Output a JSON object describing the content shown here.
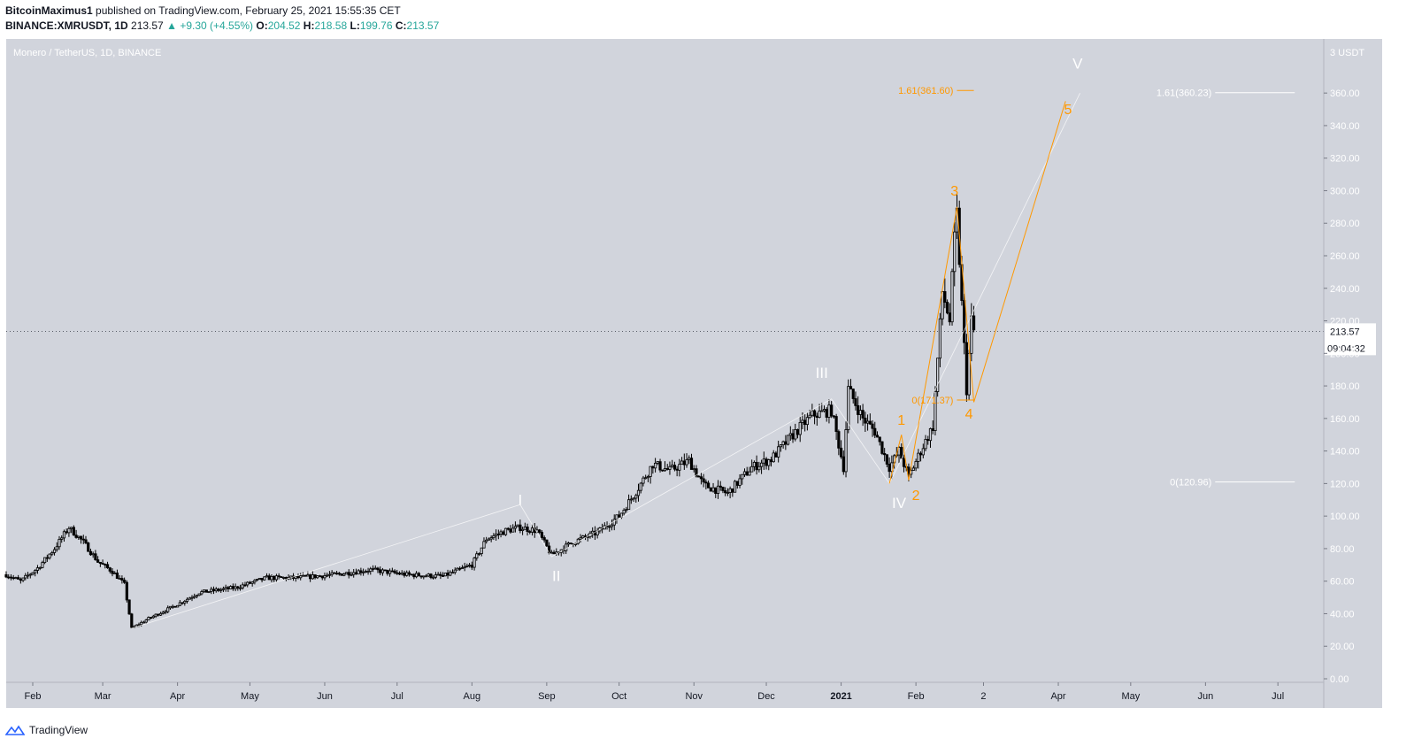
{
  "header": {
    "line1_author": "BitcoinMaximus1",
    "line1_rest": "published on TradingView.com, February 25, 2021 15:55:35 CET",
    "symbol": "BINANCE:XMRUSDT, 1D",
    "last": "213.57",
    "change": "+9.30 (+4.55%)",
    "o_label": "O:",
    "o_val": "204.52",
    "h_label": "H:",
    "h_val": "218.58",
    "l_label": "L:",
    "l_val": "199.76",
    "c_label": "C:",
    "c_val": "213.57"
  },
  "footer": {
    "brand": "TradingView"
  },
  "colors": {
    "background": "#d1d4dc",
    "candle": "#000000",
    "orange": "#ff9800",
    "white": "#ffffff",
    "price_label_bg": "#ffffff"
  },
  "chart_data": {
    "type": "candlestick",
    "title": "Monero / TetherUS, 1D, BINANCE",
    "y_unit": "USDT",
    "ylim": [
      0,
      390
    ],
    "yticks": [
      0,
      20,
      40,
      60,
      80,
      100,
      120,
      140,
      160,
      180,
      200,
      220,
      240,
      260,
      280,
      300,
      320,
      340,
      360
    ],
    "ytick_labels": [
      "0.00",
      "20.00",
      "40.00",
      "60.00",
      "80.00",
      "100.00",
      "120.00",
      "140.00",
      "160.00",
      "180.00",
      "200.00",
      "220.00",
      "240.00",
      "260.00",
      "280.00",
      "300.00",
      "320.00",
      "340.00",
      "360.00"
    ],
    "unit_label": "3 USDT",
    "xlim": [
      "2020-01-21",
      "2021-07-20"
    ],
    "xticks": [
      {
        "date": "2020-02-01",
        "label": "Feb"
      },
      {
        "date": "2020-03-01",
        "label": "Mar"
      },
      {
        "date": "2020-04-01",
        "label": "Apr"
      },
      {
        "date": "2020-05-01",
        "label": "May"
      },
      {
        "date": "2020-06-01",
        "label": "Jun"
      },
      {
        "date": "2020-07-01",
        "label": "Jul"
      },
      {
        "date": "2020-08-01",
        "label": "Aug"
      },
      {
        "date": "2020-09-01",
        "label": "Sep"
      },
      {
        "date": "2020-10-01",
        "label": "Oct"
      },
      {
        "date": "2020-11-01",
        "label": "Nov"
      },
      {
        "date": "2020-12-01",
        "label": "Dec"
      },
      {
        "date": "2021-01-01",
        "label": "2021"
      },
      {
        "date": "2021-02-01",
        "label": "Feb"
      },
      {
        "date": "2021-03-01",
        "label": "2"
      },
      {
        "date": "2021-04-01",
        "label": "Apr"
      },
      {
        "date": "2021-05-01",
        "label": "May"
      },
      {
        "date": "2021-06-01",
        "label": "Jun"
      },
      {
        "date": "2021-07-01",
        "label": "Jul"
      }
    ],
    "price_path": [
      [
        "2020-01-21",
        64
      ],
      [
        "2020-01-27",
        60
      ],
      [
        "2020-02-03",
        68
      ],
      [
        "2020-02-10",
        80
      ],
      [
        "2020-02-16",
        93
      ],
      [
        "2020-02-22",
        84
      ],
      [
        "2020-02-28",
        72
      ],
      [
        "2020-03-05",
        66
      ],
      [
        "2020-03-10",
        58
      ],
      [
        "2020-03-13",
        31
      ],
      [
        "2020-03-20",
        37
      ],
      [
        "2020-03-31",
        45
      ],
      [
        "2020-04-10",
        53
      ],
      [
        "2020-04-25",
        56
      ],
      [
        "2020-05-08",
        62
      ],
      [
        "2020-05-20",
        62
      ],
      [
        "2020-06-05",
        64
      ],
      [
        "2020-06-20",
        67
      ],
      [
        "2020-07-05",
        64
      ],
      [
        "2020-07-20",
        63
      ],
      [
        "2020-08-01",
        70
      ],
      [
        "2020-08-07",
        86
      ],
      [
        "2020-08-15",
        91
      ],
      [
        "2020-08-21",
        93
      ],
      [
        "2020-08-28",
        91
      ],
      [
        "2020-09-03",
        76
      ],
      [
        "2020-09-12",
        84
      ],
      [
        "2020-09-22",
        90
      ],
      [
        "2020-10-01",
        100
      ],
      [
        "2020-10-08",
        115
      ],
      [
        "2020-10-15",
        132
      ],
      [
        "2020-10-22",
        128
      ],
      [
        "2020-10-30",
        134
      ],
      [
        "2020-11-05",
        119
      ],
      [
        "2020-11-15",
        114
      ],
      [
        "2020-11-25",
        130
      ],
      [
        "2020-12-03",
        135
      ],
      [
        "2020-12-12",
        150
      ],
      [
        "2020-12-20",
        162
      ],
      [
        "2020-12-28",
        165
      ],
      [
        "2021-01-02",
        130
      ],
      [
        "2021-01-04",
        178
      ],
      [
        "2021-01-10",
        160
      ],
      [
        "2021-01-15",
        152
      ],
      [
        "2021-01-21",
        130
      ],
      [
        "2021-01-25",
        140
      ],
      [
        "2021-01-29",
        124
      ],
      [
        "2021-02-03",
        140
      ],
      [
        "2021-02-08",
        155
      ],
      [
        "2021-02-12",
        238
      ],
      [
        "2021-02-15",
        220
      ],
      [
        "2021-02-17",
        270
      ],
      [
        "2021-02-18",
        285
      ],
      [
        "2021-02-20",
        230
      ],
      [
        "2021-02-22",
        178
      ],
      [
        "2021-02-24",
        220
      ],
      [
        "2021-02-25",
        213.57
      ]
    ],
    "last_price": 213.57,
    "last_price_label": "213.57",
    "countdown_label": "09:04:32",
    "wave_labels_major": [
      {
        "label": "I",
        "date": "2020-08-21",
        "price": 107
      },
      {
        "label": "II",
        "date": "2020-09-05",
        "price": 60
      },
      {
        "label": "III",
        "date": "2020-12-24",
        "price": 185
      },
      {
        "label": "IV",
        "date": "2021-01-25",
        "price": 105
      },
      {
        "label": "V",
        "date": "2021-04-09",
        "price": 375
      }
    ],
    "wave_labels_minor": [
      {
        "label": "1",
        "date": "2021-01-26",
        "price": 156
      },
      {
        "label": "2",
        "date": "2021-02-01",
        "price": 110
      },
      {
        "label": "3",
        "date": "2021-02-17",
        "price": 297
      },
      {
        "label": "4",
        "date": "2021-02-23",
        "price": 160
      },
      {
        "label": "5",
        "date": "2021-04-05",
        "price": 347
      }
    ],
    "fib_levels": [
      {
        "label": "1.61(361.60)",
        "price": 361.6,
        "color": "orange",
        "from": "2021-02-18",
        "to": "2021-02-25"
      },
      {
        "label": "0(171.37)",
        "price": 171.37,
        "color": "orange",
        "from": "2021-02-18",
        "to": "2021-02-25"
      },
      {
        "label": "1.61(360.23)",
        "price": 360.23,
        "color": "white",
        "from": "2021-06-05",
        "to": "2021-07-08"
      },
      {
        "label": "0(120.96)",
        "price": 120.96,
        "color": "white",
        "from": "2021-06-05",
        "to": "2021-07-08"
      }
    ],
    "wave_lines_major": [
      [
        "2020-03-13",
        31
      ],
      [
        "2020-08-21",
        107
      ],
      [
        "2020-09-03",
        75
      ],
      [
        "2020-12-28",
        172
      ],
      [
        "2021-01-21",
        120
      ],
      [
        "2021-04-10",
        360
      ]
    ],
    "wave_lines_minor": [
      [
        "2021-01-21",
        120
      ],
      [
        "2021-01-26",
        150
      ],
      [
        "2021-01-29",
        122
      ],
      [
        "2021-02-18",
        290
      ],
      [
        "2021-02-25",
        170
      ],
      [
        "2021-04-04",
        355
      ]
    ]
  }
}
